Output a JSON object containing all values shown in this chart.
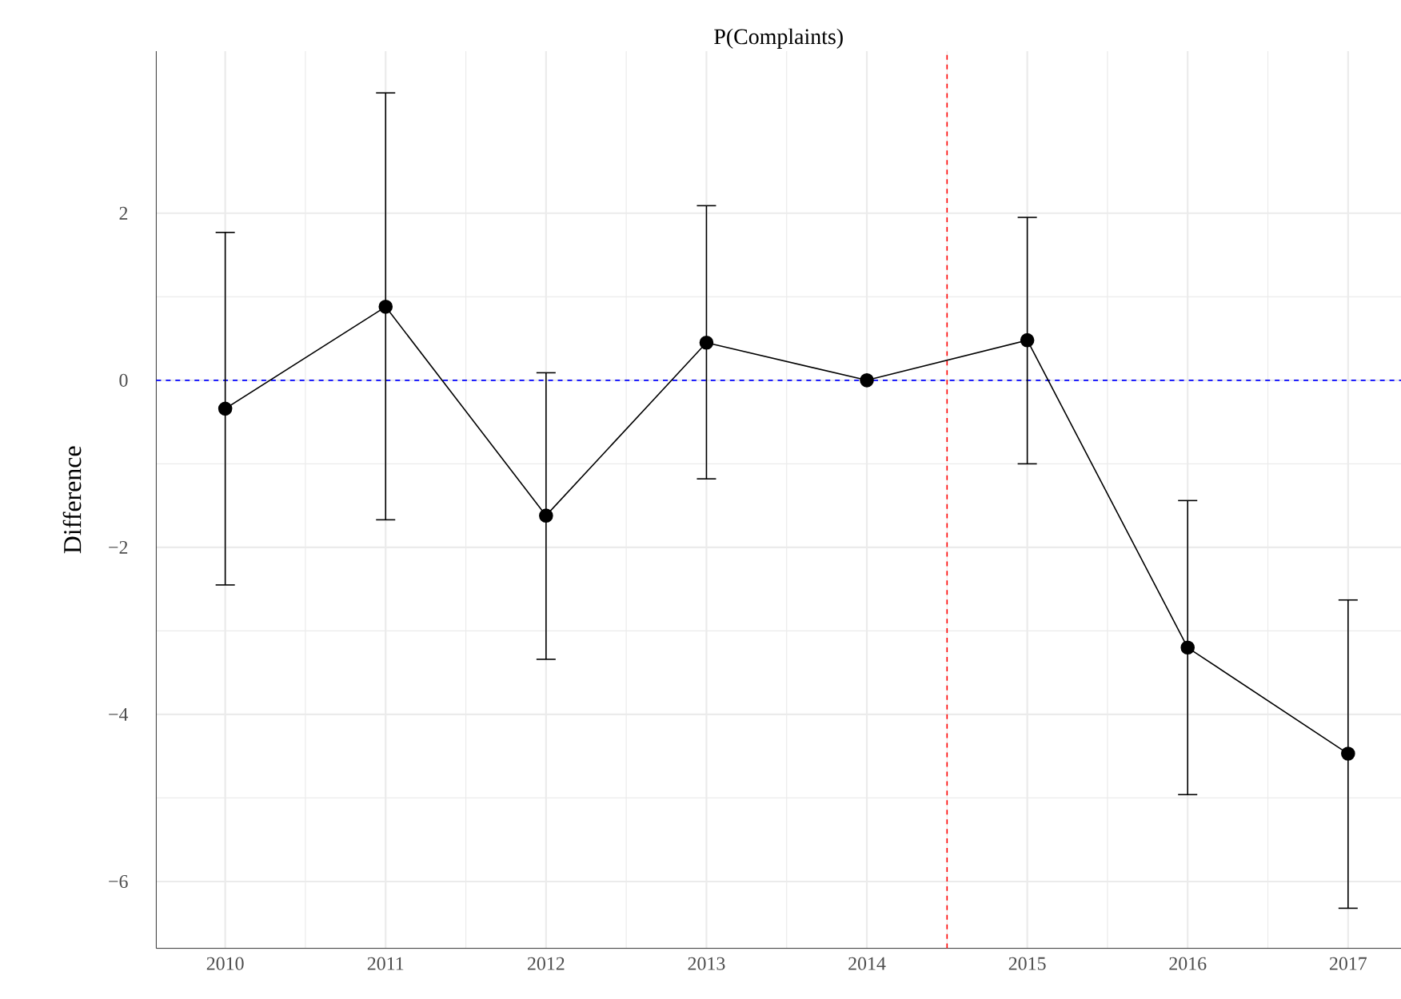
{
  "chart_data": {
    "type": "line",
    "title": "P(Complaints)",
    "ylabel": "Difference",
    "x": [
      2010,
      2011,
      2012,
      2013,
      2014,
      2015,
      2016,
      2017
    ],
    "values": [
      -0.34,
      0.88,
      -1.62,
      0.45,
      0,
      0.48,
      -3.2,
      -4.47
    ],
    "errors": [
      [
        -2.45,
        1.77
      ],
      [
        -1.67,
        3.44
      ],
      [
        -3.34,
        0.09
      ],
      [
        -1.18,
        2.09
      ],
      null,
      [
        -1.0,
        1.95
      ],
      [
        -4.96,
        -1.44
      ],
      [
        -6.32,
        -2.63
      ]
    ],
    "color": "#000000",
    "marker": "circle",
    "line_style": "solid",
    "grid": true,
    "xlim": [
      2009.57,
      2017.33
    ],
    "ylim": [
      -6.8,
      3.94
    ],
    "xticks": [
      2010,
      2011,
      2012,
      2013,
      2014,
      2015,
      2016,
      2017
    ],
    "yticks": [
      {
        "value": -6,
        "label": "−6"
      },
      {
        "value": -4,
        "label": "−4"
      },
      {
        "value": -2,
        "label": "−2"
      },
      0,
      2
    ],
    "ref_lines": [
      {
        "axis": "y",
        "value": 0,
        "color": "#0000ff",
        "line_style": "dashed"
      },
      {
        "axis": "x",
        "value": 2014.5,
        "color": "#ff0000",
        "line_style": "dashed"
      }
    ]
  }
}
